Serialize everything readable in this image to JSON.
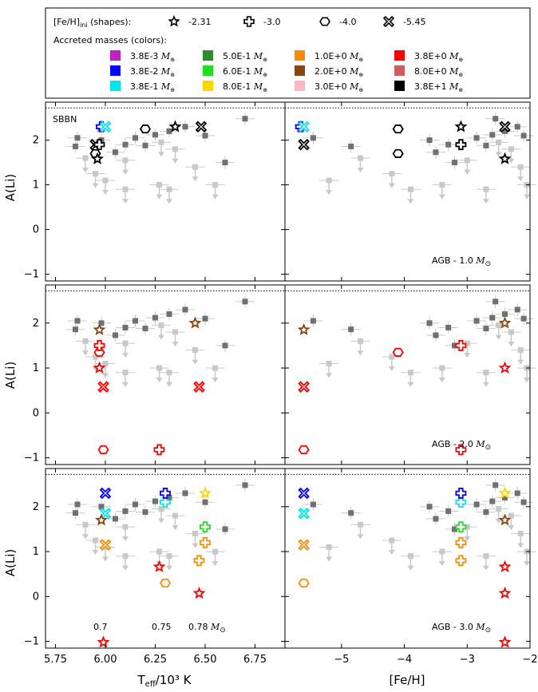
{
  "legend": {
    "shapes_title_main": "[Fe/H]",
    "shapes_title_sub": "ini",
    "shapes_title_rest": " (shapes):",
    "shapes": [
      {
        "symbol": "star",
        "label": "-2.31"
      },
      {
        "symbol": "cross",
        "label": "-3.0"
      },
      {
        "symbol": "hexagon",
        "label": "-4.0"
      },
      {
        "symbol": "x",
        "label": "-5.45"
      }
    ],
    "colors_title": "Accreted masses (colors):",
    "unit_symbol": "M",
    "unit_sub": "⊕",
    "masses": [
      {
        "label": "3.8E-3",
        "color": "#c020c0"
      },
      {
        "label": "5.0E-1",
        "color": "#2e8b2e"
      },
      {
        "label": "1.0E+0",
        "color": "#ff8c00"
      },
      {
        "label": "3.8E+0",
        "color": "#ff0000"
      },
      {
        "label": "3.8E-2",
        "color": "#0000ff"
      },
      {
        "label": "6.0E-1",
        "color": "#22dd22"
      },
      {
        "label": "2.0E+0",
        "color": "#8b4513"
      },
      {
        "label": "8.0E+0",
        "color": "#cd5c5c"
      },
      {
        "label": "3.8E-1",
        "color": "#00e5ee"
      },
      {
        "label": "8.0E-1",
        "color": "#ffd700"
      },
      {
        "label": "3.0E+0",
        "color": "#ffb6c1"
      },
      {
        "label": "3.8E+1",
        "color": "#000000"
      }
    ]
  },
  "axes": {
    "ylabel": "A(Li)",
    "left_xlabel_main": "T",
    "left_xlabel_sub": "eff",
    "left_xlabel_rest": "/10³ K",
    "right_xlabel": "[Fe/H]",
    "left_xticks": [
      "5.75",
      "6.00",
      "6.25",
      "6.50",
      "6.75"
    ],
    "right_xticks": [
      "−5",
      "−4",
      "−3",
      "−2"
    ],
    "yticks": [
      "−1",
      "0",
      "1",
      "2"
    ]
  },
  "panel_labels": {
    "sbbn": "SBBN",
    "row1": "AGB - 1.0",
    "row2": "AGB - 2.0",
    "row3": "AGB - 3.0",
    "msun": "M",
    "msun_sub": "⊙",
    "mass_07": "0.7",
    "mass_075": "0.75",
    "mass_078": "0.78"
  },
  "chart_data": {
    "type": "scatter",
    "panels": "3 rows (AGB 1.0, 2.0, 3.0 Msun) x 2 columns (Teff, [Fe/H])",
    "left_xlim": [
      5.7,
      6.9
    ],
    "right_xlim": [
      -5.9,
      -2.0
    ],
    "ylim": [
      -1.15,
      2.85
    ],
    "sbbn_line": 2.72,
    "observations": [
      {
        "teff": 5.86,
        "feh": -5.45,
        "ali": 2.05,
        "upper": false
      },
      {
        "teff": 5.85,
        "feh": -4.85,
        "ali": 1.86,
        "upper": false
      },
      {
        "teff": 5.9,
        "feh": -4.7,
        "ali": 1.6,
        "upper": true
      },
      {
        "teff": 5.95,
        "feh": -4.2,
        "ali": 1.25,
        "upper": true
      },
      {
        "teff": 5.98,
        "feh": -3.6,
        "ali": 2.0,
        "upper": false
      },
      {
        "teff": 6.05,
        "feh": -3.5,
        "ali": 1.73,
        "upper": false
      },
      {
        "teff": 6.1,
        "feh": -3.3,
        "ali": 1.9,
        "upper": false
      },
      {
        "teff": 6.1,
        "feh": -3.0,
        "ali": 1.55,
        "upper": true
      },
      {
        "teff": 6.15,
        "feh": -2.85,
        "ali": 2.05,
        "upper": false
      },
      {
        "teff": 6.2,
        "feh": -2.7,
        "ali": 1.88,
        "upper": false
      },
      {
        "teff": 6.25,
        "feh": -2.6,
        "ali": 2.12,
        "upper": false
      },
      {
        "teff": 6.28,
        "feh": -2.5,
        "ali": 1.95,
        "upper": true
      },
      {
        "teff": 6.32,
        "feh": -2.4,
        "ali": 2.2,
        "upper": false
      },
      {
        "teff": 6.35,
        "feh": -2.3,
        "ali": 1.8,
        "upper": true
      },
      {
        "teff": 6.4,
        "feh": -2.2,
        "ali": 2.3,
        "upper": false
      },
      {
        "teff": 6.45,
        "feh": -2.15,
        "ali": 1.4,
        "upper": true
      },
      {
        "teff": 6.5,
        "feh": -2.1,
        "ali": 2.1,
        "upper": false
      },
      {
        "teff": 6.55,
        "feh": -2.05,
        "ali": 1.0,
        "upper": true
      },
      {
        "teff": 6.6,
        "feh": -3.2,
        "ali": 1.5,
        "upper": false
      },
      {
        "teff": 6.7,
        "feh": -2.55,
        "ali": 2.48,
        "upper": false
      },
      {
        "teff": 6.0,
        "feh": -5.2,
        "ali": 1.1,
        "upper": true
      },
      {
        "teff": 6.1,
        "feh": -3.9,
        "ali": 0.9,
        "upper": true
      },
      {
        "teff": 6.27,
        "feh": -3.4,
        "ali": 1.0,
        "upper": true
      },
      {
        "teff": 6.32,
        "feh": -2.7,
        "ali": 0.9,
        "upper": true
      }
    ],
    "models": [
      {
        "panel": "1.0",
        "teff": 5.98,
        "feh": -5.65,
        "ali": 2.3,
        "symbol": "star",
        "mass": "3.8E-3"
      },
      {
        "panel": "1.0",
        "teff": 5.98,
        "feh": -5.65,
        "ali": 2.3,
        "symbol": "cross",
        "mass": "3.8E-2"
      },
      {
        "panel": "1.0",
        "teff": 6.0,
        "feh": -5.6,
        "ali": 2.3,
        "symbol": "x",
        "mass": "3.8E-1"
      },
      {
        "panel": "1.0",
        "teff": 5.95,
        "feh": -5.6,
        "ali": 1.9,
        "symbol": "x",
        "mass": "3.8E+1"
      },
      {
        "panel": "1.0",
        "teff": 5.95,
        "feh": -4.1,
        "ali": 1.7,
        "symbol": "hexagon",
        "mass": "3.8E+1"
      },
      {
        "panel": "1.0",
        "teff": 5.97,
        "feh": -3.1,
        "ali": 1.9,
        "symbol": "cross",
        "mass": "3.8E+1"
      },
      {
        "panel": "1.0",
        "teff": 5.96,
        "feh": -2.4,
        "ali": 1.58,
        "symbol": "star",
        "mass": "3.8E+1"
      },
      {
        "panel": "1.0",
        "teff": 6.2,
        "feh": -4.1,
        "ali": 2.25,
        "symbol": "hexagon",
        "mass": "3.8E+1"
      },
      {
        "panel": "1.0",
        "teff": 6.35,
        "feh": -3.1,
        "ali": 2.3,
        "symbol": "star",
        "mass": "3.8E+1"
      },
      {
        "panel": "1.0",
        "teff": 6.48,
        "feh": -2.4,
        "ali": 2.3,
        "symbol": "x",
        "mass": "3.8E+1"
      },
      {
        "panel": "2.0",
        "teff": 5.99,
        "feh": -5.6,
        "ali": 0.58,
        "symbol": "x",
        "mass": "3.8E+0"
      },
      {
        "panel": "2.0",
        "teff": 5.99,
        "feh": -5.6,
        "ali": -0.82,
        "symbol": "hexagon",
        "mass": "3.8E+0"
      },
      {
        "panel": "2.0",
        "teff": 5.97,
        "feh": -4.1,
        "ali": 1.35,
        "symbol": "hexagon",
        "mass": "3.8E+0"
      },
      {
        "panel": "2.0",
        "teff": 5.97,
        "feh": -3.1,
        "ali": 1.5,
        "symbol": "cross",
        "mass": "3.8E+0"
      },
      {
        "panel": "2.0",
        "teff": 5.97,
        "feh": -2.4,
        "ali": 1.0,
        "symbol": "star",
        "mass": "3.8E+0"
      },
      {
        "panel": "2.0",
        "teff": 6.27,
        "feh": -3.1,
        "ali": -0.82,
        "symbol": "cross",
        "mass": "3.8E+0"
      },
      {
        "panel": "2.0",
        "teff": 6.47,
        "feh": -5.6,
        "ali": 0.58,
        "symbol": "x",
        "mass": "3.8E+0"
      },
      {
        "panel": "2.0",
        "teff": 5.97,
        "feh": -5.6,
        "ali": 1.85,
        "symbol": "star",
        "mass": "2.0E+0"
      },
      {
        "panel": "2.0",
        "teff": 6.45,
        "feh": -2.4,
        "ali": 2.0,
        "symbol": "star",
        "mass": "2.0E+0"
      },
      {
        "panel": "3.0",
        "teff": 5.99,
        "feh": -2.4,
        "ali": -1.02,
        "symbol": "star",
        "mass": "3.8E+0"
      },
      {
        "panel": "3.0",
        "teff": 6.3,
        "feh": -5.6,
        "ali": 0.3,
        "symbol": "hexagon",
        "mass": "1.0E+0"
      },
      {
        "panel": "3.0",
        "teff": 6.47,
        "feh": -2.4,
        "ali": 0.07,
        "symbol": "star",
        "mass": "3.8E+0"
      },
      {
        "panel": "3.0",
        "teff": 6.47,
        "feh": -3.1,
        "ali": 0.8,
        "symbol": "cross",
        "mass": "1.0E+0"
      },
      {
        "panel": "3.0",
        "teff": 6.27,
        "feh": -2.4,
        "ali": 0.66,
        "symbol": "star",
        "mass": "3.8E+0"
      },
      {
        "panel": "3.0",
        "teff": 6.0,
        "feh": -5.6,
        "ali": 1.15,
        "symbol": "x",
        "mass": "1.0E+0"
      },
      {
        "panel": "3.0",
        "teff": 6.5,
        "feh": -3.1,
        "ali": 1.2,
        "symbol": "cross",
        "mass": "1.0E+0"
      },
      {
        "panel": "3.0",
        "teff": 6.5,
        "feh": -3.1,
        "ali": 1.55,
        "symbol": "cross",
        "mass": "6.0E-1"
      },
      {
        "panel": "3.0",
        "teff": 6.0,
        "feh": -5.6,
        "ali": 1.85,
        "symbol": "x",
        "mass": "3.8E-1"
      },
      {
        "panel": "3.0",
        "teff": 6.3,
        "feh": -3.1,
        "ali": 2.1,
        "symbol": "cross",
        "mass": "3.8E-1"
      },
      {
        "panel": "3.0",
        "teff": 6.0,
        "feh": -5.6,
        "ali": 2.3,
        "symbol": "x",
        "mass": "3.8E-2"
      },
      {
        "panel": "3.0",
        "teff": 6.3,
        "feh": -3.1,
        "ali": 2.3,
        "symbol": "cross",
        "mass": "3.8E-2"
      },
      {
        "panel": "3.0",
        "teff": 6.5,
        "feh": -2.4,
        "ali": 2.3,
        "symbol": "star",
        "mass": "8.0E-1"
      },
      {
        "panel": "3.0",
        "teff": 5.98,
        "feh": -2.4,
        "ali": 1.7,
        "symbol": "star",
        "mass": "2.0E+0"
      }
    ]
  }
}
